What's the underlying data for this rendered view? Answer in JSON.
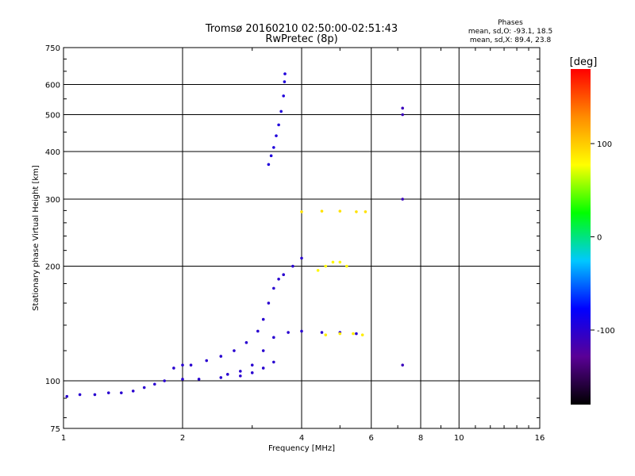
{
  "chart_data": {
    "type": "scatter",
    "title": "Tromsø 20160210 02:50:00-02:51:43",
    "subtitle": "RwPretec (8p)",
    "xlabel": "Frequency [MHz]",
    "ylabel": "Stationary phase Virtual Height [km]",
    "x_scale": "log",
    "y_scale": "log",
    "xlim": [
      1,
      16
    ],
    "ylim": [
      75,
      750
    ],
    "x_ticks": [
      1,
      2,
      4,
      6,
      8,
      10,
      16
    ],
    "y_ticks": [
      75,
      100,
      200,
      300,
      400,
      500,
      600,
      750
    ],
    "grid": true,
    "stats": {
      "heading": "Phases",
      "o_line": "mean, sd,O: -93.1, 18.5",
      "x_line": "mean, sd,X:  89.4, 23.8"
    },
    "colorbar": {
      "label": "[deg]",
      "range": [
        -180,
        180
      ],
      "ticks": [
        100,
        0,
        -100
      ],
      "colors": [
        "#000000",
        "#5a0096",
        "#0000ff",
        "#00c8ff",
        "#00ff00",
        "#ffff00",
        "#ff8c00",
        "#ff0000"
      ]
    },
    "traces": [
      {
        "name": "",
        "phase": -100,
        "points": [
          [
            1.02,
            91
          ],
          [
            1.1,
            92
          ],
          [
            1.2,
            92
          ],
          [
            1.3,
            93
          ],
          [
            1.4,
            93
          ],
          [
            1.5,
            94
          ],
          [
            1.6,
            96
          ],
          [
            1.7,
            98
          ],
          [
            1.8,
            100
          ],
          [
            2.0,
            101
          ],
          [
            2.2,
            101
          ],
          [
            2.5,
            102
          ],
          [
            2.8,
            103
          ],
          [
            3.0,
            105
          ],
          [
            3.2,
            108
          ],
          [
            3.4,
            112
          ]
        ]
      },
      {
        "name": "",
        "phase": -100,
        "points": [
          [
            1.9,
            108
          ],
          [
            2.0,
            110
          ],
          [
            2.1,
            110
          ],
          [
            2.3,
            113
          ],
          [
            2.5,
            116
          ],
          [
            2.7,
            120
          ],
          [
            2.9,
            126
          ],
          [
            3.1,
            135
          ],
          [
            3.2,
            145
          ],
          [
            3.3,
            160
          ],
          [
            3.4,
            175
          ],
          [
            3.5,
            185
          ],
          [
            3.6,
            190
          ],
          [
            3.8,
            200
          ],
          [
            4.0,
            210
          ]
        ]
      },
      {
        "name": "",
        "phase": -100,
        "points": [
          [
            2.6,
            104
          ],
          [
            2.8,
            106
          ],
          [
            3.0,
            110
          ],
          [
            3.2,
            120
          ],
          [
            3.4,
            130
          ],
          [
            3.7,
            134
          ],
          [
            4.0,
            135
          ],
          [
            4.5,
            134
          ],
          [
            5.0,
            134
          ],
          [
            5.5,
            133
          ]
        ]
      },
      {
        "name": "",
        "phase": -95,
        "points": [
          [
            3.3,
            370
          ],
          [
            3.35,
            390
          ],
          [
            3.4,
            410
          ],
          [
            3.45,
            440
          ],
          [
            3.5,
            470
          ],
          [
            3.55,
            510
          ],
          [
            3.6,
            560
          ],
          [
            3.62,
            610
          ],
          [
            3.63,
            640
          ]
        ]
      },
      {
        "name": "",
        "phase": 90,
        "points": [
          [
            4.0,
            278
          ],
          [
            4.5,
            279
          ],
          [
            5.0,
            279
          ],
          [
            5.5,
            278
          ],
          [
            5.8,
            278
          ]
        ]
      },
      {
        "name": "",
        "phase": 80,
        "points": [
          [
            4.4,
            195
          ],
          [
            4.6,
            200
          ],
          [
            4.8,
            205
          ],
          [
            5.0,
            205
          ],
          [
            5.2,
            200
          ]
        ]
      },
      {
        "name": "",
        "phase": 85,
        "points": [
          [
            4.6,
            132
          ],
          [
            5.0,
            133
          ],
          [
            5.4,
            133
          ],
          [
            5.7,
            132
          ]
        ]
      },
      {
        "name": "",
        "phase": -110,
        "points": [
          [
            7.2,
            110
          ],
          [
            7.2,
            300
          ],
          [
            7.2,
            500
          ],
          [
            7.2,
            520
          ]
        ]
      }
    ]
  }
}
